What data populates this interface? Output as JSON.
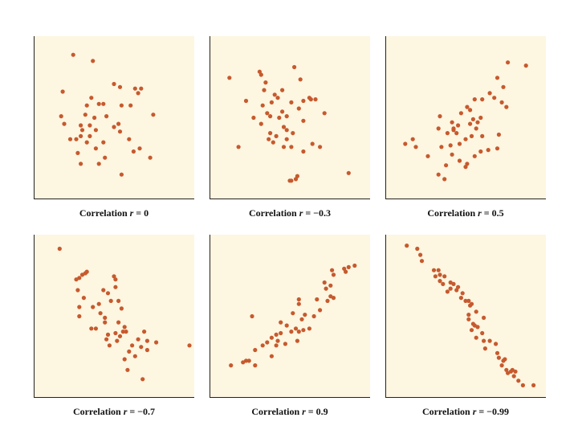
{
  "chart_data": [
    {
      "type": "scatter",
      "caption_prefix": "Correlation",
      "r_symbol": "r",
      "r_value": "= 0",
      "xlim": [
        0,
        10
      ],
      "ylim": [
        0,
        10
      ],
      "points": [
        [
          2.3,
          9.1
        ],
        [
          3.6,
          8.7
        ],
        [
          1.6,
          6.7
        ],
        [
          3.5,
          6.3
        ],
        [
          5.4,
          7.0
        ],
        [
          5.0,
          7.2
        ],
        [
          6.4,
          6.9
        ],
        [
          6.6,
          6.6
        ],
        [
          4.0,
          5.9
        ],
        [
          4.3,
          5.9
        ],
        [
          5.5,
          5.8
        ],
        [
          6.1,
          5.8
        ],
        [
          3.2,
          5.8
        ],
        [
          1.5,
          5.1
        ],
        [
          3.1,
          5.2
        ],
        [
          4.5,
          5.1
        ],
        [
          7.6,
          5.2
        ],
        [
          3.7,
          5.0
        ],
        [
          3.4,
          4.5
        ],
        [
          2.8,
          4.5
        ],
        [
          2.9,
          4.2
        ],
        [
          1.7,
          4.6
        ],
        [
          3.8,
          4.2
        ],
        [
          5.0,
          4.4
        ],
        [
          5.3,
          4.6
        ],
        [
          5.4,
          4.1
        ],
        [
          3.4,
          3.8
        ],
        [
          2.8,
          3.8
        ],
        [
          2.5,
          3.6
        ],
        [
          4.3,
          3.4
        ],
        [
          2.1,
          3.6
        ],
        [
          3.2,
          3.4
        ],
        [
          6.0,
          3.6
        ],
        [
          3.8,
          3.0
        ],
        [
          2.6,
          2.7
        ],
        [
          4.4,
          2.4
        ],
        [
          6.3,
          2.8
        ],
        [
          2.8,
          2.0
        ],
        [
          4.0,
          2.0
        ],
        [
          7.4,
          2.4
        ],
        [
          6.7,
          3.0
        ],
        [
          5.5,
          1.3
        ],
        [
          6.8,
          6.9
        ]
      ]
    },
    {
      "type": "scatter",
      "caption_prefix": "Correlation",
      "r_symbol": "r",
      "r_value": "= −0.3",
      "xlim": [
        0,
        10
      ],
      "ylim": [
        0,
        10
      ],
      "points": [
        [
          1.0,
          7.6
        ],
        [
          5.3,
          8.3
        ],
        [
          3.0,
          8.0
        ],
        [
          3.1,
          7.8
        ],
        [
          5.7,
          7.5
        ],
        [
          3.4,
          7.3
        ],
        [
          3.3,
          6.8
        ],
        [
          4.5,
          6.8
        ],
        [
          4.0,
          6.5
        ],
        [
          4.2,
          6.3
        ],
        [
          6.4,
          6.2
        ],
        [
          6.7,
          6.2
        ],
        [
          2.1,
          6.1
        ],
        [
          5.9,
          6.1
        ],
        [
          3.8,
          6.0
        ],
        [
          5.1,
          6.0
        ],
        [
          3.2,
          5.8
        ],
        [
          5.6,
          5.6
        ],
        [
          3.5,
          5.3
        ],
        [
          7.3,
          5.3
        ],
        [
          4.5,
          5.4
        ],
        [
          4.8,
          5.1
        ],
        [
          2.6,
          5.0
        ],
        [
          3.7,
          5.1
        ],
        [
          4.3,
          5.0
        ],
        [
          5.9,
          4.8
        ],
        [
          3.1,
          4.6
        ],
        [
          4.6,
          4.4
        ],
        [
          4.8,
          4.2
        ],
        [
          3.7,
          4.0
        ],
        [
          4.1,
          3.8
        ],
        [
          5.2,
          4.0
        ],
        [
          4.8,
          3.6
        ],
        [
          3.9,
          3.4
        ],
        [
          3.6,
          3.6
        ],
        [
          5.1,
          3.1
        ],
        [
          7.0,
          3.1
        ],
        [
          6.5,
          3.3
        ],
        [
          1.6,
          3.1
        ],
        [
          5.9,
          2.8
        ],
        [
          4.6,
          3.1
        ],
        [
          5.5,
          1.2
        ],
        [
          5.4,
          1.0
        ],
        [
          5.1,
          0.9
        ],
        [
          5.0,
          0.9
        ],
        [
          8.9,
          1.4
        ],
        [
          6.3,
          6.3
        ]
      ]
    },
    {
      "type": "scatter",
      "caption_prefix": "Correlation",
      "r_symbol": "r",
      "r_value": "= 0.5",
      "xlim": [
        0,
        10
      ],
      "ylim": [
        0,
        10
      ],
      "points": [
        [
          7.8,
          8.6
        ],
        [
          9.0,
          8.4
        ],
        [
          7.1,
          7.6
        ],
        [
          7.5,
          7.0
        ],
        [
          6.6,
          6.6
        ],
        [
          6.1,
          6.2
        ],
        [
          6.9,
          6.3
        ],
        [
          5.6,
          6.2
        ],
        [
          7.4,
          6.0
        ],
        [
          7.7,
          5.7
        ],
        [
          5.1,
          5.7
        ],
        [
          5.3,
          5.5
        ],
        [
          4.7,
          5.3
        ],
        [
          3.3,
          5.1
        ],
        [
          5.5,
          4.9
        ],
        [
          6.0,
          5.0
        ],
        [
          5.8,
          4.7
        ],
        [
          4.1,
          4.7
        ],
        [
          4.5,
          4.5
        ],
        [
          5.3,
          4.6
        ],
        [
          3.2,
          4.3
        ],
        [
          5.7,
          4.3
        ],
        [
          4.2,
          4.2
        ],
        [
          4.4,
          4.0
        ],
        [
          3.8,
          4.0
        ],
        [
          4.2,
          4.3
        ],
        [
          7.2,
          3.9
        ],
        [
          5.4,
          3.8
        ],
        [
          1.5,
          3.6
        ],
        [
          5.0,
          3.6
        ],
        [
          6.1,
          3.8
        ],
        [
          1.0,
          3.3
        ],
        [
          1.7,
          3.1
        ],
        [
          4.0,
          3.2
        ],
        [
          4.6,
          3.3
        ],
        [
          3.4,
          3.1
        ],
        [
          7.1,
          3.0
        ],
        [
          6.5,
          2.9
        ],
        [
          4.1,
          2.6
        ],
        [
          2.5,
          2.5
        ],
        [
          5.6,
          2.5
        ],
        [
          4.6,
          2.2
        ],
        [
          5.1,
          2.0
        ],
        [
          3.7,
          1.9
        ],
        [
          5.0,
          1.8
        ],
        [
          3.2,
          1.3
        ],
        [
          3.6,
          1.0
        ],
        [
          6.0,
          2.8
        ]
      ]
    },
    {
      "type": "scatter",
      "caption_prefix": "Correlation",
      "r_symbol": "r",
      "r_value": "= −0.7",
      "xlim": [
        0,
        10
      ],
      "ylim": [
        0,
        10
      ],
      "points": [
        [
          1.4,
          9.4
        ],
        [
          3.1,
          7.8
        ],
        [
          3.2,
          7.9
        ],
        [
          2.9,
          7.7
        ],
        [
          2.7,
          7.5
        ],
        [
          2.5,
          7.4
        ],
        [
          5.0,
          7.6
        ],
        [
          5.1,
          7.4
        ],
        [
          2.6,
          6.7
        ],
        [
          4.3,
          6.7
        ],
        [
          5.1,
          6.9
        ],
        [
          4.6,
          6.5
        ],
        [
          3.0,
          6.2
        ],
        [
          4.8,
          6.0
        ],
        [
          5.3,
          6.0
        ],
        [
          4.0,
          5.8
        ],
        [
          3.6,
          5.6
        ],
        [
          2.7,
          5.6
        ],
        [
          5.5,
          5.5
        ],
        [
          4.1,
          5.2
        ],
        [
          2.7,
          5.0
        ],
        [
          4.4,
          4.9
        ],
        [
          4.4,
          4.6
        ],
        [
          5.3,
          4.6
        ],
        [
          5.7,
          4.3
        ],
        [
          5.6,
          4.0
        ],
        [
          3.8,
          4.2
        ],
        [
          3.5,
          4.2
        ],
        [
          5.1,
          3.9
        ],
        [
          5.8,
          4.0
        ],
        [
          7.0,
          4.0
        ],
        [
          4.6,
          3.8
        ],
        [
          5.4,
          3.7
        ],
        [
          5.2,
          3.4
        ],
        [
          4.5,
          3.5
        ],
        [
          6.6,
          3.5
        ],
        [
          4.7,
          3.1
        ],
        [
          7.2,
          3.4
        ],
        [
          6.2,
          3.1
        ],
        [
          7.8,
          3.3
        ],
        [
          10.0,
          3.1
        ],
        [
          7.2,
          2.8
        ],
        [
          6.0,
          2.7
        ],
        [
          6.8,
          3.0
        ],
        [
          6.4,
          2.4
        ],
        [
          5.7,
          2.2
        ],
        [
          5.9,
          1.5
        ],
        [
          6.9,
          0.9
        ]
      ]
    },
    {
      "type": "scatter",
      "caption_prefix": "Correlation",
      "r_symbol": "r",
      "r_value": "= 0.9",
      "xlim": [
        0,
        10
      ],
      "ylim": [
        0,
        10
      ],
      "points": [
        [
          9.3,
          8.3
        ],
        [
          8.9,
          8.2
        ],
        [
          8.6,
          8.1
        ],
        [
          7.8,
          8.0
        ],
        [
          8.7,
          7.9
        ],
        [
          7.9,
          7.7
        ],
        [
          7.3,
          7.2
        ],
        [
          7.7,
          7.0
        ],
        [
          7.4,
          6.8
        ],
        [
          7.7,
          6.3
        ],
        [
          7.9,
          6.2
        ],
        [
          7.5,
          6.0
        ],
        [
          6.8,
          6.1
        ],
        [
          5.6,
          6.1
        ],
        [
          5.6,
          5.8
        ],
        [
          7.0,
          5.4
        ],
        [
          5.2,
          5.2
        ],
        [
          6.0,
          5.1
        ],
        [
          6.6,
          5.0
        ],
        [
          5.8,
          4.8
        ],
        [
          4.4,
          4.6
        ],
        [
          5.4,
          4.2
        ],
        [
          4.8,
          4.4
        ],
        [
          6.3,
          4.2
        ],
        [
          5.9,
          4.1
        ],
        [
          5.6,
          4.0
        ],
        [
          5.1,
          4.0
        ],
        [
          4.4,
          3.9
        ],
        [
          4.1,
          3.8
        ],
        [
          3.8,
          3.6
        ],
        [
          4.2,
          3.4
        ],
        [
          5.5,
          3.4
        ],
        [
          3.5,
          3.3
        ],
        [
          3.2,
          3.1
        ],
        [
          4.1,
          3.1
        ],
        [
          4.7,
          3.2
        ],
        [
          2.7,
          2.8
        ],
        [
          3.8,
          2.4
        ],
        [
          2.3,
          2.1
        ],
        [
          2.1,
          2.1
        ],
        [
          1.9,
          2.0
        ],
        [
          2.7,
          1.8
        ],
        [
          1.1,
          1.8
        ],
        [
          2.5,
          5.0
        ]
      ]
    },
    {
      "type": "scatter",
      "caption_prefix": "Correlation",
      "r_symbol": "r",
      "r_value": "= −0.99",
      "xlim": [
        0,
        10
      ],
      "ylim": [
        0,
        10
      ],
      "points": [
        [
          1.1,
          9.6
        ],
        [
          1.8,
          9.4
        ],
        [
          2.0,
          9.0
        ],
        [
          2.1,
          8.6
        ],
        [
          2.9,
          8.0
        ],
        [
          3.2,
          8.0
        ],
        [
          3.0,
          7.6
        ],
        [
          3.3,
          7.7
        ],
        [
          3.6,
          7.6
        ],
        [
          3.3,
          7.3
        ],
        [
          3.5,
          7.1
        ],
        [
          4.0,
          7.2
        ],
        [
          4.2,
          7.1
        ],
        [
          4.5,
          6.9
        ],
        [
          4.0,
          6.8
        ],
        [
          4.4,
          6.7
        ],
        [
          4.8,
          6.5
        ],
        [
          3.8,
          6.6
        ],
        [
          4.7,
          6.2
        ],
        [
          5.0,
          6.0
        ],
        [
          5.2,
          6.0
        ],
        [
          5.3,
          5.7
        ],
        [
          5.4,
          5.8
        ],
        [
          5.7,
          5.3
        ],
        [
          5.2,
          5.1
        ],
        [
          6.2,
          4.9
        ],
        [
          5.2,
          4.8
        ],
        [
          5.5,
          4.5
        ],
        [
          5.6,
          4.4
        ],
        [
          5.8,
          4.3
        ],
        [
          5.4,
          4.1
        ],
        [
          6.1,
          3.9
        ],
        [
          5.7,
          3.6
        ],
        [
          6.2,
          3.4
        ],
        [
          6.6,
          3.4
        ],
        [
          7.0,
          3.2
        ],
        [
          6.3,
          2.9
        ],
        [
          7.1,
          2.6
        ],
        [
          7.2,
          2.3
        ],
        [
          7.6,
          2.2
        ],
        [
          7.5,
          2.1
        ],
        [
          7.4,
          1.8
        ],
        [
          7.7,
          1.5
        ],
        [
          8.0,
          1.4
        ],
        [
          8.1,
          1.5
        ],
        [
          8.3,
          1.4
        ],
        [
          8.2,
          1.1
        ],
        [
          8.5,
          0.8
        ],
        [
          8.8,
          0.5
        ],
        [
          7.8,
          1.3
        ],
        [
          9.5,
          0.5
        ]
      ]
    }
  ]
}
